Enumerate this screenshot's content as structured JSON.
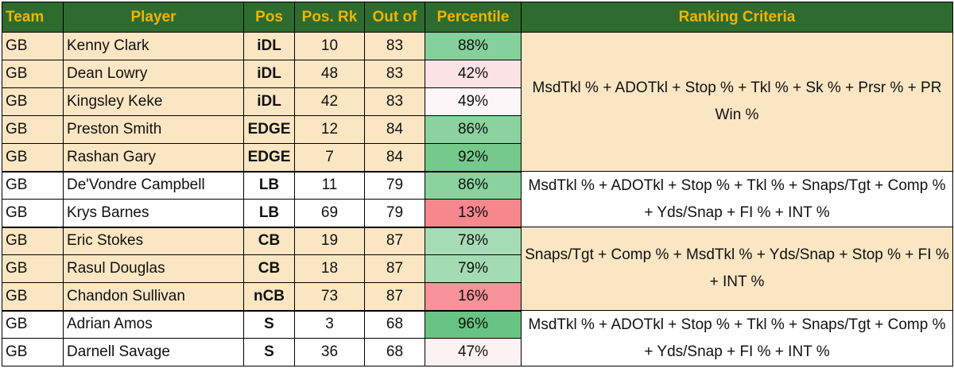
{
  "headers": {
    "team": "Team",
    "player": "Player",
    "pos": "Pos",
    "pos_rk": "Pos. Rk",
    "out_of": "Out of",
    "percentile": "Percentile",
    "criteria": "Ranking Criteria"
  },
  "rows": [
    {
      "team": "GB",
      "player": "Kenny Clark",
      "pos": "iDL",
      "rk": "10",
      "out_of": "83",
      "pct": "88%",
      "pct_color": "#86d09b"
    },
    {
      "team": "GB",
      "player": "Dean Lowry",
      "pos": "iDL",
      "rk": "48",
      "out_of": "83",
      "pct": "42%",
      "pct_color": "#fbe3e5"
    },
    {
      "team": "GB",
      "player": "Kingsley Keke",
      "pos": "iDL",
      "rk": "42",
      "out_of": "83",
      "pct": "49%",
      "pct_color": "#fdf6f8"
    },
    {
      "team": "GB",
      "player": "Preston Smith",
      "pos": "EDGE",
      "rk": "12",
      "out_of": "84",
      "pct": "86%",
      "pct_color": "#8ad29e"
    },
    {
      "team": "GB",
      "player": "Rashan Gary",
      "pos": "EDGE",
      "rk": "7",
      "out_of": "84",
      "pct": "92%",
      "pct_color": "#74c98b"
    },
    {
      "team": "GB",
      "player": "De'Vondre Campbell",
      "pos": "LB",
      "rk": "11",
      "out_of": "79",
      "pct": "86%",
      "pct_color": "#8ad29e"
    },
    {
      "team": "GB",
      "player": "Krys Barnes",
      "pos": "LB",
      "rk": "69",
      "out_of": "79",
      "pct": "13%",
      "pct_color": "#f5878d"
    },
    {
      "team": "GB",
      "player": "Eric Stokes",
      "pos": "CB",
      "rk": "19",
      "out_of": "87",
      "pct": "78%",
      "pct_color": "#a6dcb5"
    },
    {
      "team": "GB",
      "player": "Rasul Douglas",
      "pos": "CB",
      "rk": "18",
      "out_of": "87",
      "pct": "79%",
      "pct_color": "#a3dbb2"
    },
    {
      "team": "GB",
      "player": "Chandon Sullivan",
      "pos": "nCB",
      "rk": "73",
      "out_of": "87",
      "pct": "16%",
      "pct_color": "#f69298"
    },
    {
      "team": "GB",
      "player": "Adrian Amos",
      "pos": "S",
      "rk": "3",
      "out_of": "68",
      "pct": "96%",
      "pct_color": "#68c482"
    },
    {
      "team": "GB",
      "player": "Darnell Savage",
      "pos": "S",
      "rk": "36",
      "out_of": "68",
      "pct": "47%",
      "pct_color": "#fcf1f3"
    }
  ],
  "criteria": [
    "MsdTkl % + ADOTkl + Stop % + Tkl % + Sk % + Prsr % + PR Win %",
    "MsdTkl % + ADOTkl + Stop % + Tkl % + Snaps/Tgt + Comp % + Yds/Snap + FI % + INT %",
    "Snaps/Tgt + Comp % + MsdTkl % + Yds/Snap + Stop % + FI % + INT %",
    "MsdTkl % + ADOTkl + Stop % + Tkl % + Snaps/Tgt + Comp % + Yds/Snap + FI % + INT %"
  ]
}
